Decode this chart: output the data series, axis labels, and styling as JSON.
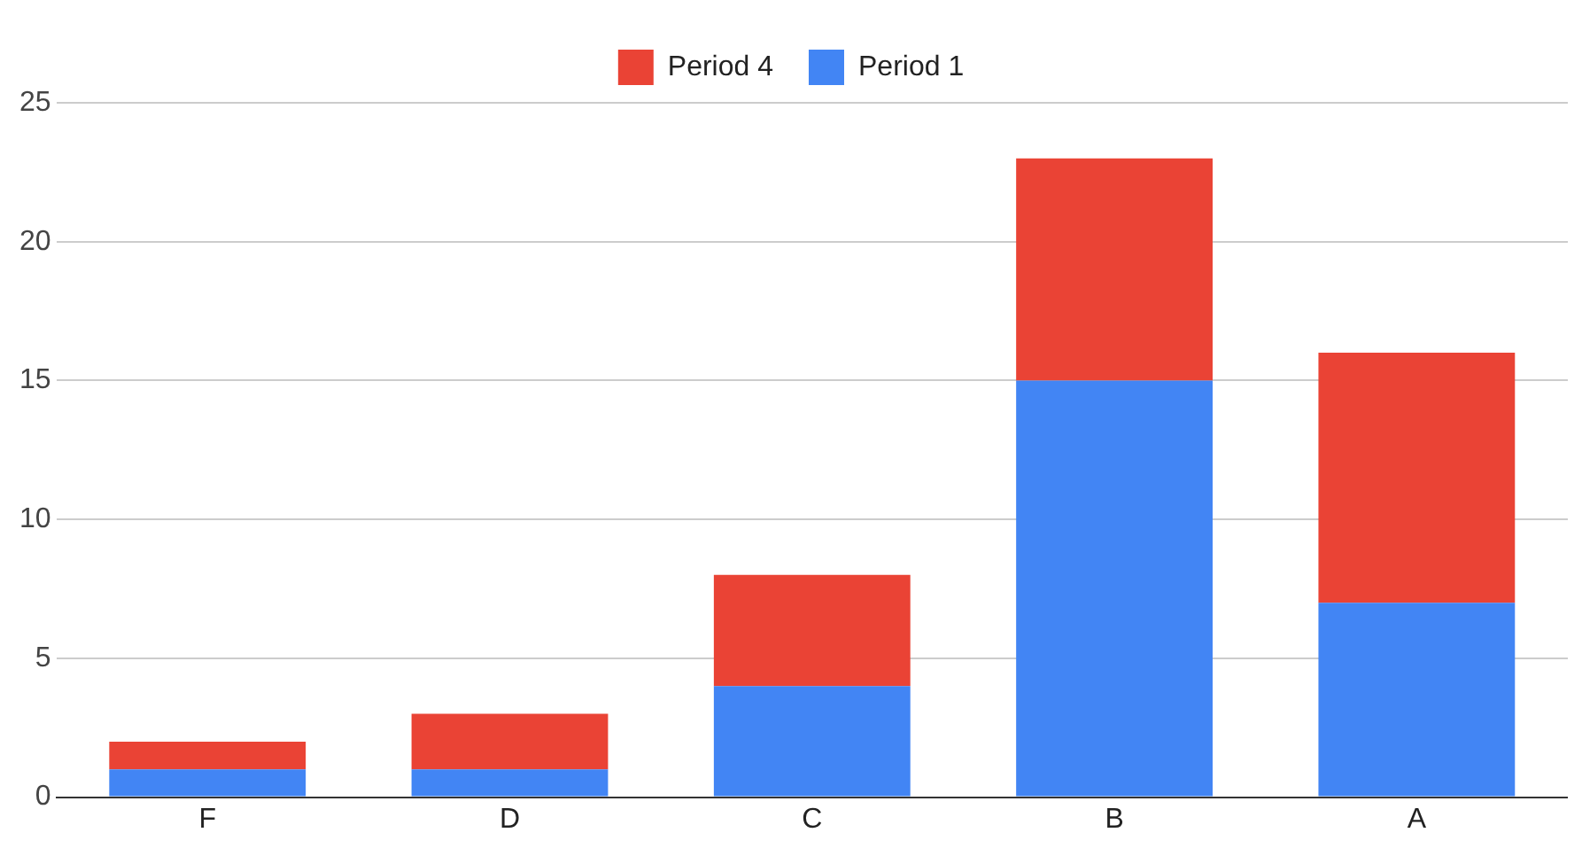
{
  "chart_data": {
    "type": "bar",
    "stacked": true,
    "categories": [
      "F",
      "D",
      "C",
      "B",
      "A"
    ],
    "series": [
      {
        "name": "Period 1",
        "color": "#4285f4",
        "values": [
          1,
          1,
          4,
          15,
          7
        ]
      },
      {
        "name": "Period 4",
        "color": "#ea4335",
        "values": [
          1,
          2,
          4,
          8,
          9
        ]
      }
    ],
    "ylim": [
      0,
      25
    ],
    "yticks": [
      0,
      5,
      10,
      15,
      20,
      25
    ],
    "grid": "y",
    "legend": "top"
  }
}
